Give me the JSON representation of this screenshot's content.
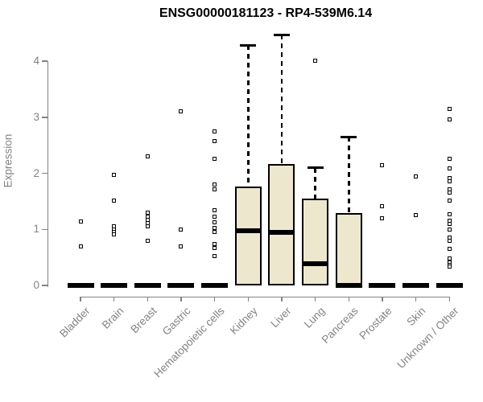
{
  "chart_data": {
    "type": "boxplot",
    "title": "ENSG00000181123 - RP4-539M6.14",
    "ylabel": "Expression",
    "xlabel": "",
    "ylim": [
      0,
      4
    ],
    "yticks": [
      0,
      1,
      2,
      3,
      4
    ],
    "grid": false,
    "legend": "none",
    "categories": [
      "Bladder",
      "Brain",
      "Breast",
      "Gastric",
      "Hematopoietic cells",
      "Kidney",
      "Liver",
      "Lung",
      "Pancreas",
      "Prostate",
      "Skin",
      "Unknown / Other"
    ],
    "boxes": [
      {
        "category": "Bladder",
        "q1": 0,
        "median": 0,
        "q3": 0,
        "whisker_low": 0,
        "whisker_high": 0,
        "outliers": [
          1.14,
          0.69
        ]
      },
      {
        "category": "Brain",
        "q1": 0,
        "median": 0,
        "q3": 0,
        "whisker_low": 0,
        "whisker_high": 0,
        "outliers": [
          1.97,
          1.51,
          1.05,
          1.0,
          0.95,
          0.91
        ]
      },
      {
        "category": "Breast",
        "q1": 0,
        "median": 0,
        "q3": 0,
        "whisker_low": 0,
        "whisker_high": 0,
        "outliers": [
          2.3,
          1.3,
          1.23,
          1.17,
          1.11,
          1.06,
          0.8
        ]
      },
      {
        "category": "Gastric",
        "q1": 0,
        "median": 0,
        "q3": 0,
        "whisker_low": 0,
        "whisker_high": 0,
        "outliers": [
          3.1,
          1.0,
          0.7
        ]
      },
      {
        "category": "Hematopoietic cells",
        "q1": 0,
        "median": 0,
        "q3": 0,
        "whisker_low": 0,
        "whisker_high": 0,
        "outliers": [
          2.75,
          2.57,
          2.26,
          1.8,
          1.71,
          1.34,
          1.22,
          1.13,
          1.03,
          0.96,
          0.74,
          0.67,
          0.53
        ]
      },
      {
        "category": "Kidney",
        "q1": 0,
        "median": 0.98,
        "q3": 1.76,
        "whisker_low": 0,
        "whisker_high": 4.28,
        "outliers": []
      },
      {
        "category": "Liver",
        "q1": 0,
        "median": 0.95,
        "q3": 2.16,
        "whisker_low": 0,
        "whisker_high": 4.47,
        "outliers": []
      },
      {
        "category": "Lung",
        "q1": 0,
        "median": 0.38,
        "q3": 1.55,
        "whisker_low": 0,
        "whisker_high": 2.1,
        "outliers": [
          4.01
        ]
      },
      {
        "category": "Pancreas",
        "q1": 0,
        "median": 0,
        "q3": 1.29,
        "whisker_low": 0,
        "whisker_high": 2.65,
        "outliers": []
      },
      {
        "category": "Prostate",
        "q1": 0,
        "median": 0,
        "q3": 0,
        "whisker_low": 0,
        "whisker_high": 0,
        "outliers": [
          2.14,
          1.41,
          1.19
        ]
      },
      {
        "category": "Skin",
        "q1": 0,
        "median": 0,
        "q3": 0,
        "whisker_low": 0,
        "whisker_high": 0,
        "outliers": [
          1.94,
          1.26
        ]
      },
      {
        "category": "Unknown / Other",
        "q1": 0,
        "median": 0,
        "q3": 0,
        "whisker_low": 0,
        "whisker_high": 0,
        "outliers": [
          3.14,
          2.96,
          2.26,
          2.09,
          1.91,
          1.85,
          1.72,
          1.65,
          1.51,
          1.27,
          1.16,
          1.1,
          1.0,
          0.86,
          0.79,
          0.65,
          0.48,
          0.41,
          0.36,
          0.33
        ]
      }
    ],
    "colors": {
      "box_fill": "#ede8cd",
      "box_border": "#000000",
      "median": "#000000",
      "whisker": "#000000",
      "axis": "#828282",
      "tick_label": "#838383",
      "title": "#000000",
      "background": "#ffffff"
    }
  }
}
